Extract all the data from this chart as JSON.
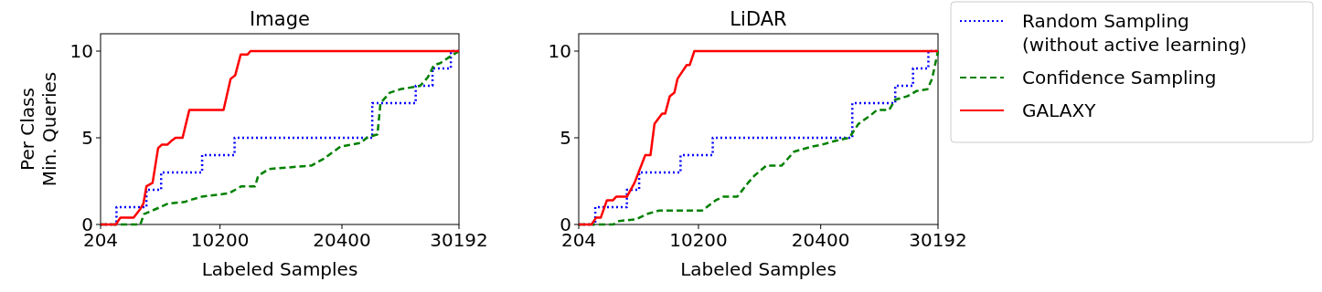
{
  "chart_data": [
    {
      "type": "line",
      "title": "Image",
      "xlabel": "Labeled Samples",
      "ylabel": "Per Class\nMin. Queries",
      "xlim": [
        204,
        30192
      ],
      "xticks": [
        204,
        10200,
        20400,
        30192
      ],
      "ylim": [
        0,
        11
      ],
      "yticks": [
        0,
        5,
        10
      ],
      "grid": false,
      "legend": false,
      "marker": "none",
      "series": [
        {
          "type": "step",
          "color": "#0000ff",
          "line_style": "dotted",
          "x": [
            204,
            1535,
            4044,
            5273,
            8703,
            11417,
            22937,
            26572,
            27980,
            29516,
            30192
          ],
          "values": [
            0,
            1,
            2,
            3,
            4,
            5,
            7,
            8,
            9,
            10,
            10
          ]
        },
        {
          "type": "line",
          "color": "#008000",
          "line_style": "dashed",
          "x": [
            204,
            3532,
            3839,
            5196,
            5836,
            7244,
            7628,
            8652,
            10956,
            11980,
            13132,
            13388,
            14284,
            17868,
            18892,
            20300,
            21964,
            22476,
            23372,
            23628,
            24396,
            25292,
            26956,
            27596,
            28108,
            28620,
            29260,
            30192
          ],
          "values": [
            0,
            0,
            0.6,
            1.0,
            1.2,
            1.3,
            1.4,
            1.6,
            1.8,
            2.2,
            2.2,
            2.8,
            3.2,
            3.4,
            3.8,
            4.5,
            4.7,
            5.0,
            5.2,
            7.0,
            7.6,
            7.8,
            8.0,
            8.5,
            9.2,
            9.3,
            9.6,
            10
          ]
        },
        {
          "type": "line",
          "color": "#ff0000",
          "line_style": "solid",
          "x": [
            204,
            1484,
            1868,
            2969,
            3532,
            3788,
            4044,
            4556,
            5017,
            5324,
            5785,
            6092,
            6476,
            7065,
            7628,
            10495,
            11084,
            11468,
            11929,
            12492,
            12748,
            30192
          ],
          "values": [
            0,
            0,
            0.4,
            0.4,
            0.9,
            1.2,
            2.2,
            2.4,
            4.4,
            4.6,
            4.6,
            4.8,
            5.0,
            5.0,
            6.6,
            6.6,
            8.4,
            8.6,
            9.8,
            9.8,
            10,
            10
          ]
        }
      ]
    },
    {
      "type": "line",
      "title": "LiDAR",
      "xlabel": "Labeled Samples",
      "xlim": [
        204,
        30192
      ],
      "xticks": [
        204,
        10200,
        20400,
        30192
      ],
      "ylim": [
        0,
        11
      ],
      "yticks": [
        0,
        5,
        10
      ],
      "grid": false,
      "legend": "right",
      "marker": "none",
      "series": [
        {
          "type": "step",
          "name": "Random Sampling\n(without active learning)",
          "color": "#0000ff",
          "line_style": "dotted",
          "x": [
            204,
            1586,
            4223,
            5247,
            8703,
            11391,
            23039,
            26623,
            28108,
            29388,
            30192
          ],
          "values": [
            0,
            1,
            2,
            3,
            4,
            5,
            7,
            8,
            9,
            10,
            10
          ]
        },
        {
          "type": "line",
          "name": "Confidence Sampling",
          "color": "#008000",
          "line_style": "dashed",
          "x": [
            204,
            3071,
            3583,
            4991,
            5887,
            6911,
            10495,
            11647,
            12287,
            13439,
            14335,
            14847,
            15871,
            17151,
            18175,
            19711,
            20479,
            21503,
            22783,
            23551,
            24575,
            25087,
            26111,
            26623,
            27647,
            28415,
            29311,
            29695,
            30192
          ],
          "values": [
            0,
            0,
            0.2,
            0.3,
            0.6,
            0.8,
            0.8,
            1.4,
            1.6,
            1.6,
            2.4,
            2.8,
            3.4,
            3.4,
            4.2,
            4.5,
            4.6,
            4.8,
            5.0,
            5.8,
            6.3,
            6.6,
            6.6,
            7.2,
            7.4,
            7.7,
            7.8,
            8.4,
            10
          ]
        },
        {
          "type": "line",
          "name": "GALAXY",
          "color": "#ff0000",
          "line_style": "solid",
          "x": [
            204,
            1279,
            1663,
            2047,
            2559,
            3071,
            3327,
            4223,
            4863,
            5759,
            6194,
            6527,
            7167,
            7423,
            7807,
            8191,
            8447,
            9215,
            9471,
            9855,
            30192
          ],
          "values": [
            0,
            0,
            0.4,
            0.4,
            1.4,
            1.4,
            1.6,
            1.6,
            2.4,
            4.0,
            4.0,
            5.8,
            6.4,
            6.4,
            7.4,
            7.6,
            8.4,
            9.2,
            9.2,
            10,
            10
          ]
        }
      ]
    }
  ]
}
